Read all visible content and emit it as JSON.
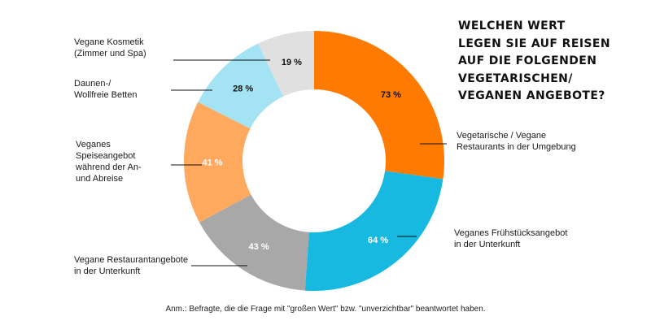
{
  "chart_data": {
    "type": "donut",
    "title_lines": [
      "WELCHEN WERT",
      "LEGEN SIE AUF REISEN",
      "AUF DIE FOLGENDEN",
      "VEGETARISCHEN/",
      "VEGANEN ANGEBOTE?"
    ],
    "unit": "%",
    "slices": [
      {
        "label_lines": [
          "Vegetarische / Vegane",
          "Restaurants in der Umgebung"
        ],
        "value": 73,
        "value_label": "73 %",
        "color": "#ff7a00",
        "label_color": "#111111"
      },
      {
        "label_lines": [
          "Veganes Frühstücksangebot",
          "in der Unterkunft"
        ],
        "value": 64,
        "value_label": "64 %",
        "color": "#17b9e0",
        "label_color": "#ffffff"
      },
      {
        "label_lines": [
          "Vegane Restaurantangebote",
          "in der Unterkunft"
        ],
        "value": 43,
        "value_label": "43 %",
        "color": "#a8a8a8",
        "label_color": "#ffffff"
      },
      {
        "label_lines": [
          "Veganes",
          "Speiseangebot",
          "während der An-",
          "und Abreise"
        ],
        "value": 41,
        "value_label": "41 %",
        "color": "#ffa95e",
        "label_color": "#ffffff"
      },
      {
        "label_lines": [
          "Daunen-/",
          "Wollfreie Betten"
        ],
        "value": 28,
        "value_label": "28 %",
        "color": "#a3e3f3",
        "label_color": "#111111"
      },
      {
        "label_lines": [
          "Vegane Kosmetik",
          "(Zimmer und Spa)"
        ],
        "value": 19,
        "value_label": "19 %",
        "color": "#e0e0e0",
        "label_color": "#111111"
      }
    ]
  },
  "footnote": "Anm.: Befragte, die die Frage mit \"großen Wert\" bzw. \"unverzichtbar\" beantwortet haben."
}
